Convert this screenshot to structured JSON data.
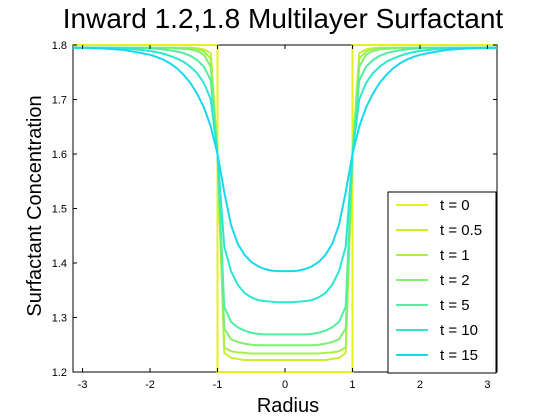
{
  "chart_data": {
    "type": "line",
    "title": "Inward 1.2,1.8 Multilayer Surfactant",
    "xlabel": "Radius",
    "ylabel": "Surfactant Concentration",
    "xlim": [
      -3.14159,
      3.14159
    ],
    "ylim": [
      1.2,
      1.8
    ],
    "xticks": [
      -3,
      -2,
      -1,
      0,
      1,
      2,
      3
    ],
    "xtick_labels": [
      "-3",
      "-2",
      "-1",
      "0",
      "1",
      "2",
      "3"
    ],
    "yticks": [
      1.2,
      1.3,
      1.4,
      1.5,
      1.6,
      1.7,
      1.8
    ],
    "ytick_labels": [
      "1.2",
      "1.3",
      "1.4",
      "1.5",
      "1.6",
      "1.7",
      "1.8"
    ],
    "grid": false,
    "legend_position": "lower-right",
    "x": [
      -3.14,
      -3.0,
      -2.8,
      -2.6,
      -2.4,
      -2.2,
      -2.0,
      -1.9,
      -1.8,
      -1.7,
      -1.6,
      -1.5,
      -1.4,
      -1.3,
      -1.2,
      -1.1,
      -1.0,
      -0.9,
      -0.8,
      -0.7,
      -0.6,
      -0.5,
      -0.4,
      -0.3,
      -0.2,
      -0.1,
      0.0,
      0.1,
      0.2,
      0.3,
      0.4,
      0.5,
      0.6,
      0.7,
      0.8,
      0.9,
      1.0,
      1.1,
      1.2,
      1.3,
      1.4,
      1.5,
      1.6,
      1.7,
      1.8,
      1.9,
      2.0,
      2.2,
      2.4,
      2.6,
      2.8,
      3.0,
      3.14
    ],
    "series": [
      {
        "name": "t = 0",
        "color": "#e6f01a",
        "step": true,
        "step_x": [
          -3.14159,
          -1.0,
          -1.0,
          1.0,
          1.0,
          3.14159
        ],
        "step_y": [
          1.8,
          1.8,
          1.2,
          1.2,
          1.8,
          1.8
        ]
      },
      {
        "name": "t = 0.5",
        "color": "#c8f033",
        "values": [
          1.795,
          1.795,
          1.795,
          1.795,
          1.795,
          1.795,
          1.795,
          1.795,
          1.795,
          1.795,
          1.795,
          1.795,
          1.795,
          1.794,
          1.792,
          1.785,
          1.6,
          1.235,
          1.226,
          1.224,
          1.222,
          1.222,
          1.222,
          1.222,
          1.222,
          1.222,
          1.222,
          1.222,
          1.222,
          1.222,
          1.222,
          1.222,
          1.222,
          1.224,
          1.226,
          1.235,
          1.6,
          1.785,
          1.792,
          1.794,
          1.795,
          1.795,
          1.795,
          1.795,
          1.795,
          1.795,
          1.795,
          1.795,
          1.795,
          1.795,
          1.795,
          1.795,
          1.795
        ]
      },
      {
        "name": "t = 1",
        "color": "#a8f048",
        "values": [
          1.795,
          1.795,
          1.795,
          1.795,
          1.795,
          1.795,
          1.795,
          1.795,
          1.795,
          1.795,
          1.795,
          1.795,
          1.795,
          1.793,
          1.788,
          1.775,
          1.6,
          1.245,
          1.238,
          1.236,
          1.235,
          1.234,
          1.234,
          1.234,
          1.234,
          1.234,
          1.234,
          1.234,
          1.234,
          1.234,
          1.234,
          1.234,
          1.235,
          1.236,
          1.238,
          1.245,
          1.6,
          1.775,
          1.788,
          1.793,
          1.795,
          1.795,
          1.795,
          1.795,
          1.795,
          1.795,
          1.795,
          1.795,
          1.795,
          1.795,
          1.795,
          1.795,
          1.795
        ]
      },
      {
        "name": "t = 2",
        "color": "#7ef070",
        "values": [
          1.795,
          1.795,
          1.795,
          1.795,
          1.795,
          1.795,
          1.795,
          1.795,
          1.795,
          1.795,
          1.794,
          1.793,
          1.792,
          1.789,
          1.782,
          1.76,
          1.6,
          1.28,
          1.26,
          1.255,
          1.252,
          1.25,
          1.249,
          1.249,
          1.249,
          1.249,
          1.249,
          1.249,
          1.249,
          1.249,
          1.249,
          1.25,
          1.252,
          1.255,
          1.26,
          1.28,
          1.6,
          1.76,
          1.782,
          1.789,
          1.792,
          1.793,
          1.794,
          1.795,
          1.795,
          1.795,
          1.795,
          1.795,
          1.795,
          1.795,
          1.795,
          1.795,
          1.795
        ]
      },
      {
        "name": "t = 5",
        "color": "#52eea0",
        "values": [
          1.795,
          1.795,
          1.795,
          1.795,
          1.795,
          1.795,
          1.794,
          1.793,
          1.792,
          1.79,
          1.788,
          1.785,
          1.78,
          1.772,
          1.76,
          1.735,
          1.6,
          1.32,
          1.292,
          1.282,
          1.276,
          1.272,
          1.27,
          1.269,
          1.269,
          1.269,
          1.269,
          1.269,
          1.269,
          1.269,
          1.27,
          1.272,
          1.276,
          1.282,
          1.292,
          1.32,
          1.6,
          1.735,
          1.76,
          1.772,
          1.78,
          1.785,
          1.788,
          1.79,
          1.792,
          1.793,
          1.794,
          1.795,
          1.795,
          1.795,
          1.795,
          1.795,
          1.795
        ]
      },
      {
        "name": "t = 10",
        "color": "#2ae8d0",
        "values": [
          1.795,
          1.795,
          1.795,
          1.795,
          1.794,
          1.792,
          1.789,
          1.787,
          1.784,
          1.78,
          1.775,
          1.769,
          1.76,
          1.748,
          1.73,
          1.7,
          1.6,
          1.43,
          1.385,
          1.36,
          1.345,
          1.337,
          1.332,
          1.33,
          1.329,
          1.328,
          1.328,
          1.328,
          1.329,
          1.33,
          1.332,
          1.337,
          1.345,
          1.36,
          1.385,
          1.43,
          1.6,
          1.7,
          1.73,
          1.748,
          1.76,
          1.769,
          1.775,
          1.78,
          1.784,
          1.787,
          1.789,
          1.792,
          1.794,
          1.795,
          1.795,
          1.795,
          1.795
        ]
      },
      {
        "name": "t = 15",
        "color": "#18d8f0",
        "values": [
          1.795,
          1.795,
          1.794,
          1.793,
          1.791,
          1.787,
          1.782,
          1.778,
          1.773,
          1.766,
          1.757,
          1.745,
          1.73,
          1.71,
          1.685,
          1.65,
          1.6,
          1.53,
          1.47,
          1.435,
          1.415,
          1.402,
          1.394,
          1.389,
          1.386,
          1.385,
          1.385,
          1.385,
          1.386,
          1.389,
          1.394,
          1.402,
          1.415,
          1.435,
          1.47,
          1.53,
          1.6,
          1.65,
          1.685,
          1.71,
          1.73,
          1.745,
          1.757,
          1.766,
          1.773,
          1.778,
          1.782,
          1.787,
          1.791,
          1.793,
          1.794,
          1.795,
          1.795
        ]
      }
    ]
  }
}
